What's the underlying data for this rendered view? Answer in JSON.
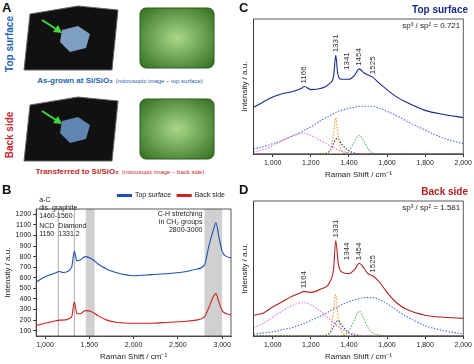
{
  "panel_a": {
    "panel_label": "A",
    "rows": [
      {
        "side_label": "Top surface",
        "caption": "As-grown at Si/SiO₂",
        "note": "(microsopic image – top surface)",
        "color": "#2563b0"
      },
      {
        "side_label": "Back side",
        "caption": "Transferred to Si/SiO₂",
        "note": "(microsopic image – back side)",
        "color": "#c0282d"
      }
    ]
  },
  "chart_data": [
    {
      "panel_label": "B",
      "type": "line",
      "x_label": "Raman Shift / cm⁻¹",
      "y_label": "Intensity / a.u.",
      "x": [
        900,
        1000,
        1100,
        1166,
        1200,
        1300,
        1331,
        1360,
        1400,
        1454,
        1525,
        1600,
        1700,
        1800,
        2000,
        2200,
        2400,
        2600,
        2700,
        2800,
        2850,
        2900,
        2930,
        2960,
        3000,
        3050,
        3100
      ],
      "series": [
        {
          "name": "Top surface",
          "color": "#1f4fb5",
          "line_style": "solid",
          "values": [
            560,
            610,
            640,
            660,
            650,
            700,
            850,
            760,
            770,
            800,
            780,
            730,
            680,
            650,
            620,
            630,
            640,
            660,
            680,
            720,
            900,
            1050,
            1120,
            1000,
            850,
            800,
            790
          ]
        },
        {
          "name": "Back side",
          "color": "#d02020",
          "line_style": "solid",
          "values": [
            150,
            170,
            190,
            200,
            200,
            230,
            370,
            260,
            260,
            290,
            280,
            240,
            200,
            180,
            170,
            170,
            180,
            190,
            200,
            230,
            320,
            420,
            450,
            380,
            290,
            260,
            250
          ]
        }
      ],
      "xlim": [
        900,
        3100
      ],
      "xticks": [
        {
          "value": 1000,
          "label": "1,000"
        },
        {
          "value": 1500,
          "label": "1,500"
        },
        {
          "value": 2000,
          "label": "2,000"
        },
        {
          "value": 2500,
          "label": "2,500"
        },
        {
          "value": 3000,
          "label": "3,000"
        }
      ],
      "ylim": [
        50,
        1250
      ],
      "yticks": [
        100,
        200,
        300,
        400,
        500,
        600,
        700,
        800,
        900,
        1000,
        1100,
        1200
      ],
      "grid": false,
      "legend": "upper right",
      "annotations": [
        {
          "text": [
            "NCD",
            "1150"
          ],
          "x": 1150
        },
        {
          "text": [
            "Diamond",
            "1331.2"
          ],
          "x": 1331.2
        },
        {
          "text": [
            "a-C",
            "dis. graphite",
            "1460-1560"
          ],
          "x": [
            1460,
            1560
          ]
        },
        {
          "text": [
            "C-H stretching",
            "in CH₂ groups",
            "2800-3000"
          ],
          "x": [
            2800,
            3000
          ]
        }
      ]
    },
    {
      "panel_label": "C",
      "type": "line",
      "title": "Top surface",
      "x_label": "Raman Shift / cm⁻¹",
      "y_label": "Intensity / a.u.",
      "x": [
        900,
        950,
        1000,
        1050,
        1100,
        1150,
        1166,
        1200,
        1250,
        1300,
        1320,
        1331,
        1341,
        1360,
        1400,
        1430,
        1454,
        1480,
        1500,
        1525,
        1560,
        1600,
        1650,
        1700,
        1800,
        1900,
        2000
      ],
      "series": [
        {
          "color": "#1a2a8a",
          "line_style": "solid",
          "values": [
            45,
            50,
            55,
            58,
            60,
            63,
            65,
            62,
            63,
            68,
            75,
            95,
            78,
            72,
            72,
            76,
            82,
            78,
            76,
            74,
            68,
            62,
            55,
            50,
            42,
            38,
            35
          ]
        },
        {
          "color": "#e07bd8",
          "line_style": "dotted",
          "values": [
            2,
            4,
            8,
            13,
            17,
            20,
            20,
            18,
            13,
            8,
            6,
            5,
            4,
            3,
            1,
            0,
            0,
            0,
            0,
            0,
            0,
            0,
            0,
            0,
            0,
            0,
            0
          ]
        },
        {
          "color": "#f0a030",
          "line_style": "dotted",
          "values": [
            0,
            0,
            0,
            0,
            0,
            0,
            0,
            0,
            0,
            3,
            20,
            35,
            20,
            4,
            0,
            0,
            0,
            0,
            0,
            0,
            0,
            0,
            0,
            0,
            0,
            0,
            0
          ]
        },
        {
          "color": "#1f3a93",
          "line_style": "dotted",
          "values": [
            0,
            0,
            0,
            0,
            0,
            0,
            0,
            0,
            0,
            3,
            10,
            14,
            15,
            10,
            3,
            1,
            0,
            0,
            0,
            0,
            0,
            0,
            0,
            0,
            0,
            0,
            0
          ]
        },
        {
          "color": "#5cb85c",
          "line_style": "dotted",
          "values": [
            0,
            0,
            0,
            0,
            0,
            0,
            0,
            0,
            0,
            0,
            0,
            0,
            0,
            0,
            3,
            12,
            18,
            12,
            5,
            1,
            0,
            0,
            0,
            0,
            0,
            0,
            0
          ]
        },
        {
          "color": "#4f6fd0",
          "line_style": "dotted",
          "values": [
            5,
            7,
            10,
            13,
            17,
            21,
            23,
            26,
            32,
            37,
            39,
            40,
            41,
            42,
            44,
            45,
            46,
            46,
            46,
            46,
            44,
            41,
            37,
            32,
            23,
            15,
            10
          ]
        }
      ],
      "peak_labels": [
        1166,
        1331,
        1341,
        1454,
        1525
      ],
      "annotations": [
        {
          "text": [
            "sp³ / sp² = 0.721"
          ]
        }
      ],
      "xlim": [
        900,
        2000
      ],
      "xticks": [
        {
          "value": 1000,
          "label": "1,000"
        },
        {
          "value": 1200,
          "label": "1,200"
        },
        {
          "value": 1400,
          "label": "1,400"
        },
        {
          "value": 1600,
          "label": "1,600"
        },
        {
          "value": 1800,
          "label": "1,800"
        },
        {
          "value": 2000,
          "label": "2,000"
        }
      ],
      "ylim": [
        0,
        130
      ],
      "grid": false,
      "tick_labels": "x"
    },
    {
      "panel_label": "D",
      "type": "line",
      "title": "Back side",
      "x_label": "Raman Shift / cm⁻¹",
      "y_label": "Intensity / a.u.",
      "x": [
        900,
        950,
        1000,
        1050,
        1100,
        1150,
        1164,
        1200,
        1250,
        1300,
        1320,
        1331,
        1344,
        1360,
        1400,
        1430,
        1454,
        1480,
        1500,
        1525,
        1560,
        1600,
        1650,
        1700,
        1800,
        1900,
        2000
      ],
      "series": [
        {
          "color": "#b22222",
          "line_style": "solid",
          "values": [
            20,
            22,
            28,
            33,
            38,
            42,
            43,
            42,
            45,
            52,
            65,
            92,
            70,
            62,
            60,
            64,
            70,
            65,
            60,
            58,
            52,
            42,
            32,
            26,
            20,
            18,
            17
          ]
        },
        {
          "color": "#e07bd8",
          "line_style": "dotted",
          "values": [
            8,
            12,
            18,
            24,
            29,
            32,
            32,
            30,
            24,
            16,
            13,
            11,
            9,
            7,
            3,
            2,
            1,
            0,
            0,
            0,
            0,
            0,
            0,
            0,
            0,
            0,
            0
          ]
        },
        {
          "color": "#f0a030",
          "line_style": "dotted",
          "values": [
            0,
            0,
            0,
            0,
            0,
            0,
            0,
            0,
            0,
            4,
            25,
            40,
            18,
            5,
            0,
            0,
            0,
            0,
            0,
            0,
            0,
            0,
            0,
            0,
            0,
            0,
            0
          ]
        },
        {
          "color": "#1f3a93",
          "line_style": "dotted",
          "values": [
            0,
            0,
            0,
            0,
            0,
            0,
            0,
            0,
            0,
            3,
            9,
            13,
            15,
            11,
            3,
            1,
            0,
            0,
            0,
            0,
            0,
            0,
            0,
            0,
            0,
            0,
            0
          ]
        },
        {
          "color": "#5cb85c",
          "line_style": "dotted",
          "values": [
            0,
            0,
            0,
            0,
            0,
            0,
            0,
            0,
            0,
            0,
            0,
            0,
            0,
            0,
            5,
            16,
            24,
            16,
            8,
            3,
            1,
            0,
            0,
            0,
            0,
            0,
            0
          ]
        },
        {
          "color": "#4f6fd0",
          "line_style": "dotted",
          "values": [
            2,
            3,
            4,
            6,
            8,
            11,
            12,
            15,
            19,
            24,
            26,
            27,
            28,
            30,
            33,
            35,
            36,
            37,
            37,
            37,
            35,
            31,
            25,
            19,
            10,
            5,
            2
          ]
        }
      ],
      "peak_labels": [
        1164,
        1331,
        1344,
        1454,
        1525
      ],
      "annotations": [
        {
          "text": [
            "sp³ / sp² = 1.581"
          ]
        }
      ],
      "xlim": [
        900,
        2000
      ],
      "xticks": [
        {
          "value": 1000,
          "label": "1,000"
        },
        {
          "value": 1200,
          "label": "1,200"
        },
        {
          "value": 1400,
          "label": "1,400"
        },
        {
          "value": 1600,
          "label": "1,600"
        },
        {
          "value": 1800,
          "label": "1,800"
        },
        {
          "value": 2000,
          "label": "2,000"
        }
      ],
      "ylim": [
        0,
        130
      ],
      "grid": false,
      "tick_labels": "x"
    }
  ]
}
